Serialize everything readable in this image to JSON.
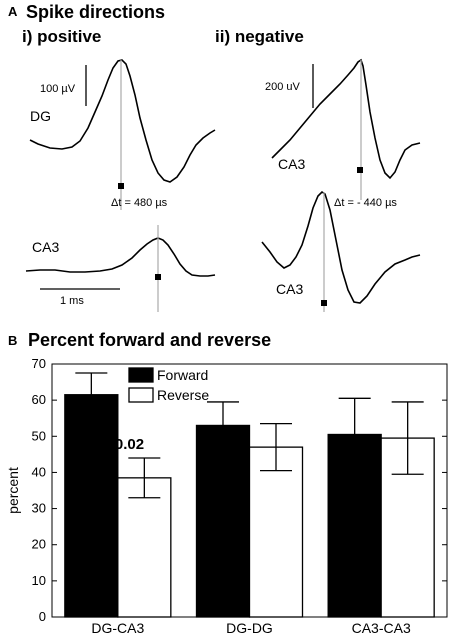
{
  "panel_a": {
    "letter": "A",
    "title": "Spike directions",
    "positive": {
      "title": "i) positive",
      "scale_label": "100 µV",
      "top_trace_label": "DG",
      "bottom_trace_label": "CA3",
      "dt_label": "Δt = 480 µs",
      "time_scale_label": "1 ms"
    },
    "negative": {
      "title": "ii) negative",
      "scale_label": "200 uV",
      "top_trace_label": "CA3",
      "bottom_trace_label": "CA3",
      "dt_label": "Δt = - 440 µs"
    }
  },
  "panel_b": {
    "letter": "B",
    "title": "Percent forward and reverse",
    "pvalue_label": "p=0.02"
  },
  "chart_data": {
    "type": "bar",
    "title": "Percent forward and reverse",
    "categories": [
      "DG-CA3",
      "DG-DG",
      "CA3-CA3"
    ],
    "series": [
      {
        "name": "Forward",
        "color": "#000000",
        "values": [
          61.5,
          53,
          50.5
        ],
        "error": [
          6,
          6.5,
          10
        ]
      },
      {
        "name": "Reverse",
        "color": "#ffffff",
        "values": [
          38.5,
          47,
          49.5
        ],
        "error": [
          5.5,
          6.5,
          10
        ]
      }
    ],
    "ylabel": "percent",
    "xlabel": "",
    "ylim": [
      0,
      70
    ],
    "yticks": [
      0,
      10,
      20,
      30,
      40,
      50,
      60,
      70
    ],
    "legend": "top-left",
    "grid": false
  }
}
